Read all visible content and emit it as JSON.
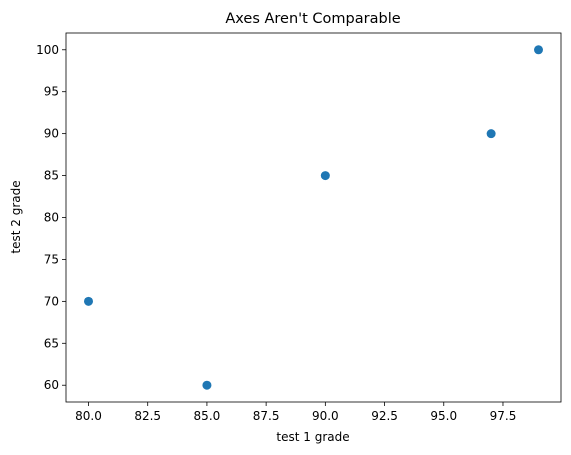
{
  "chart_data": {
    "type": "scatter",
    "title": "Axes Aren't Comparable",
    "xlabel": "test 1 grade",
    "ylabel": "test 2 grade",
    "x": [
      80,
      85,
      90,
      97,
      99
    ],
    "y": [
      70,
      60,
      85,
      90,
      100
    ],
    "xlim": [
      79.05,
      99.95
    ],
    "ylim": [
      58,
      102
    ],
    "x_ticks": [
      80,
      82.5,
      85,
      87.5,
      90,
      92.5,
      95,
      97.5
    ],
    "x_tick_labels": [
      "80.0",
      "82.5",
      "85.0",
      "87.5",
      "90.0",
      "92.5",
      "95.0",
      "97.5"
    ],
    "y_ticks": [
      60,
      65,
      70,
      75,
      80,
      85,
      90,
      95,
      100
    ],
    "y_tick_labels": [
      "60",
      "65",
      "70",
      "75",
      "80",
      "85",
      "90",
      "95",
      "100"
    ],
    "grid": false,
    "marker_color": "#1f77b4"
  }
}
